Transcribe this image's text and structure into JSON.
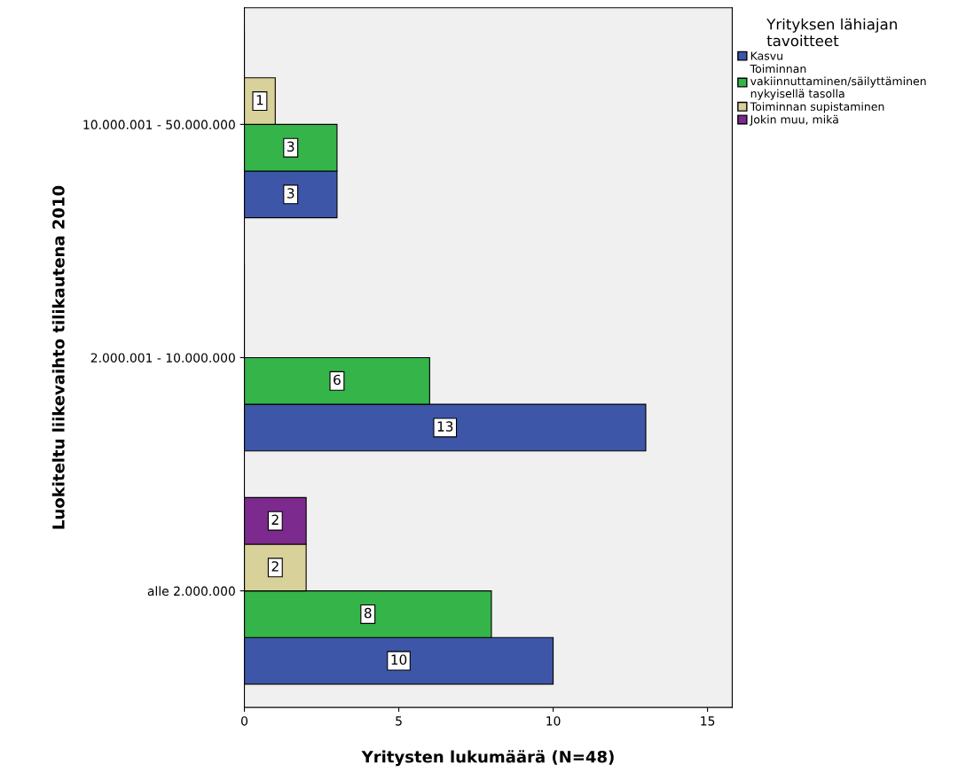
{
  "chart_data": {
    "type": "bar",
    "orientation": "horizontal",
    "xlabel": "Yritysten lukumäärä (N=48)",
    "ylabel": "Luokiteltu liikevaihto tilikautena 2010",
    "legend_title": "Yrityksen lähiajan\ntavoitteet",
    "legend": "top right",
    "categories": [
      "10.000.001 - 50.000.000",
      "2.000.001 - 10.000.000",
      "alle 2.000.000"
    ],
    "series": [
      {
        "name": "Kasvu",
        "color": "#3d56a8",
        "values": [
          3,
          13,
          10
        ],
        "value_labels": [
          "3",
          "13",
          "10"
        ]
      },
      {
        "name": "Toiminnan\nvakiinnuttaminen/säilyttäminen\nnykyisellä tasolla",
        "color": "#35b44a",
        "values": [
          3,
          6,
          8
        ],
        "value_labels": [
          "3",
          "6",
          "8"
        ]
      },
      {
        "name": "Toiminnan supistaminen",
        "color": "#d8d29a",
        "values": [
          1,
          0,
          2
        ],
        "value_labels": [
          "1",
          null,
          "2"
        ]
      },
      {
        "name": "Jokin muu, mikä",
        "color": "#7d2a8e",
        "values": [
          0,
          0,
          2
        ],
        "value_labels": [
          null,
          null,
          "2"
        ]
      }
    ],
    "xlim": [
      0,
      15.8
    ],
    "xticks": [
      0,
      5,
      10,
      15
    ],
    "grid": false
  }
}
